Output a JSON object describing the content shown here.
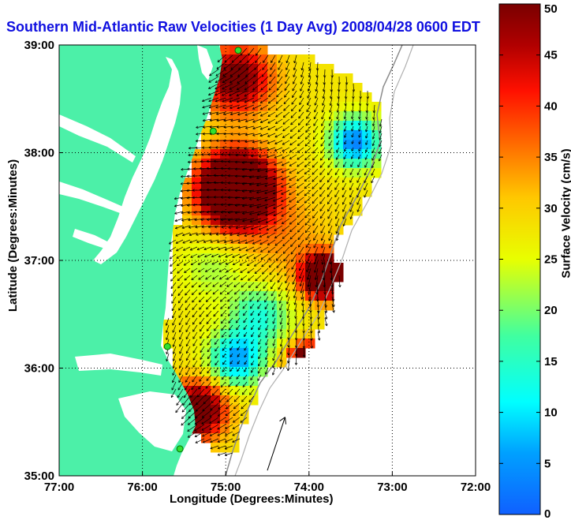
{
  "chart_data": {
    "type": "heatmap",
    "title": "Southern Mid-Atlantic Raw Velocities (1 Day Avg) 2008/04/28 0600 EDT",
    "xlabel": "Longitude (Degrees:Minutes)",
    "ylabel": "Latitude (Degrees:Minutes)",
    "colorbar_label": "Surface Velocity (cm/s)",
    "xlim": [
      -77,
      -72
    ],
    "ylim": [
      35,
      39
    ],
    "x_ticks": [
      -77,
      -76,
      -75,
      -74,
      -73,
      -72
    ],
    "x_tick_labels": [
      "77:00",
      "76:00",
      "75:00",
      "74:00",
      "73:00",
      "72:00"
    ],
    "y_ticks": [
      35,
      36,
      37,
      38,
      39
    ],
    "y_tick_labels": [
      "35:00",
      "36:00",
      "37:00",
      "38:00",
      "39:00"
    ],
    "colorbar_range": [
      0,
      50
    ],
    "colorbar_ticks": [
      0,
      5,
      10,
      15,
      20,
      25,
      30,
      35,
      40,
      45,
      50
    ],
    "grid": true,
    "colormap": "jet",
    "land_color": "#4cf0a8",
    "stations": [
      {
        "lon": -74.85,
        "lat": 38.95
      },
      {
        "lon": -75.15,
        "lat": 38.2
      },
      {
        "lon": -75.7,
        "lat": 36.2
      },
      {
        "lon": -75.55,
        "lat": 35.25
      }
    ],
    "reference_vector": {
      "lon": -74.5,
      "lat": 35.05,
      "u": 0.15,
      "v": 0.45
    }
  }
}
